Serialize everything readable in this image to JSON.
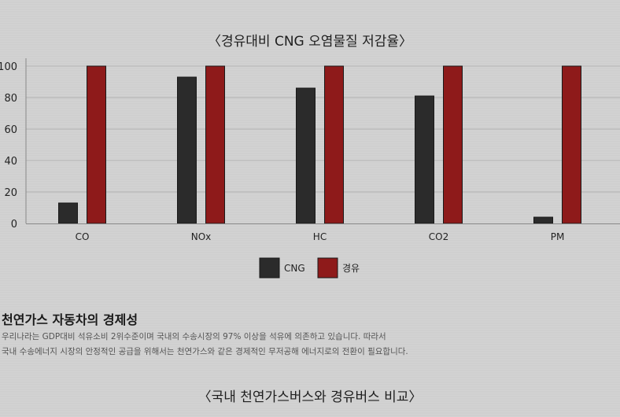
{
  "chart_data": {
    "type": "bar",
    "title": "〈경유대비 CNG 오염물질 저감율〉",
    "categories": [
      "CO",
      "NOx",
      "HC",
      "CO2",
      "PM"
    ],
    "series": [
      {
        "name": "CNG",
        "values": [
          13,
          93,
          86,
          81,
          4
        ],
        "color": "#2b2b2b"
      },
      {
        "name": "경유",
        "values": [
          100,
          100,
          100,
          100,
          100
        ],
        "color": "#8e1a1a"
      }
    ],
    "ylim": [
      0,
      100
    ],
    "yticks": [
      0,
      20,
      40,
      60,
      80,
      100
    ],
    "grid": true,
    "legend": "bottom-center"
  },
  "section": {
    "heading": "천연가스 자동차의 경제성",
    "lines": [
      "우리나라는 GDP대비 석유소비 2위수준이며 국내의 수송시장의 97% 이상을 석유에 의존하고 있습니다. 따라서",
      "국내 수송에너지 시장의 안정적인 공급을 위해서는 천연가스와 같은 경제적인 무저공해 에너지로의 전환이 필요합니다."
    ]
  },
  "next_section": {
    "title": "〈국내 천연가스버스와 경유버스 비교〉"
  }
}
